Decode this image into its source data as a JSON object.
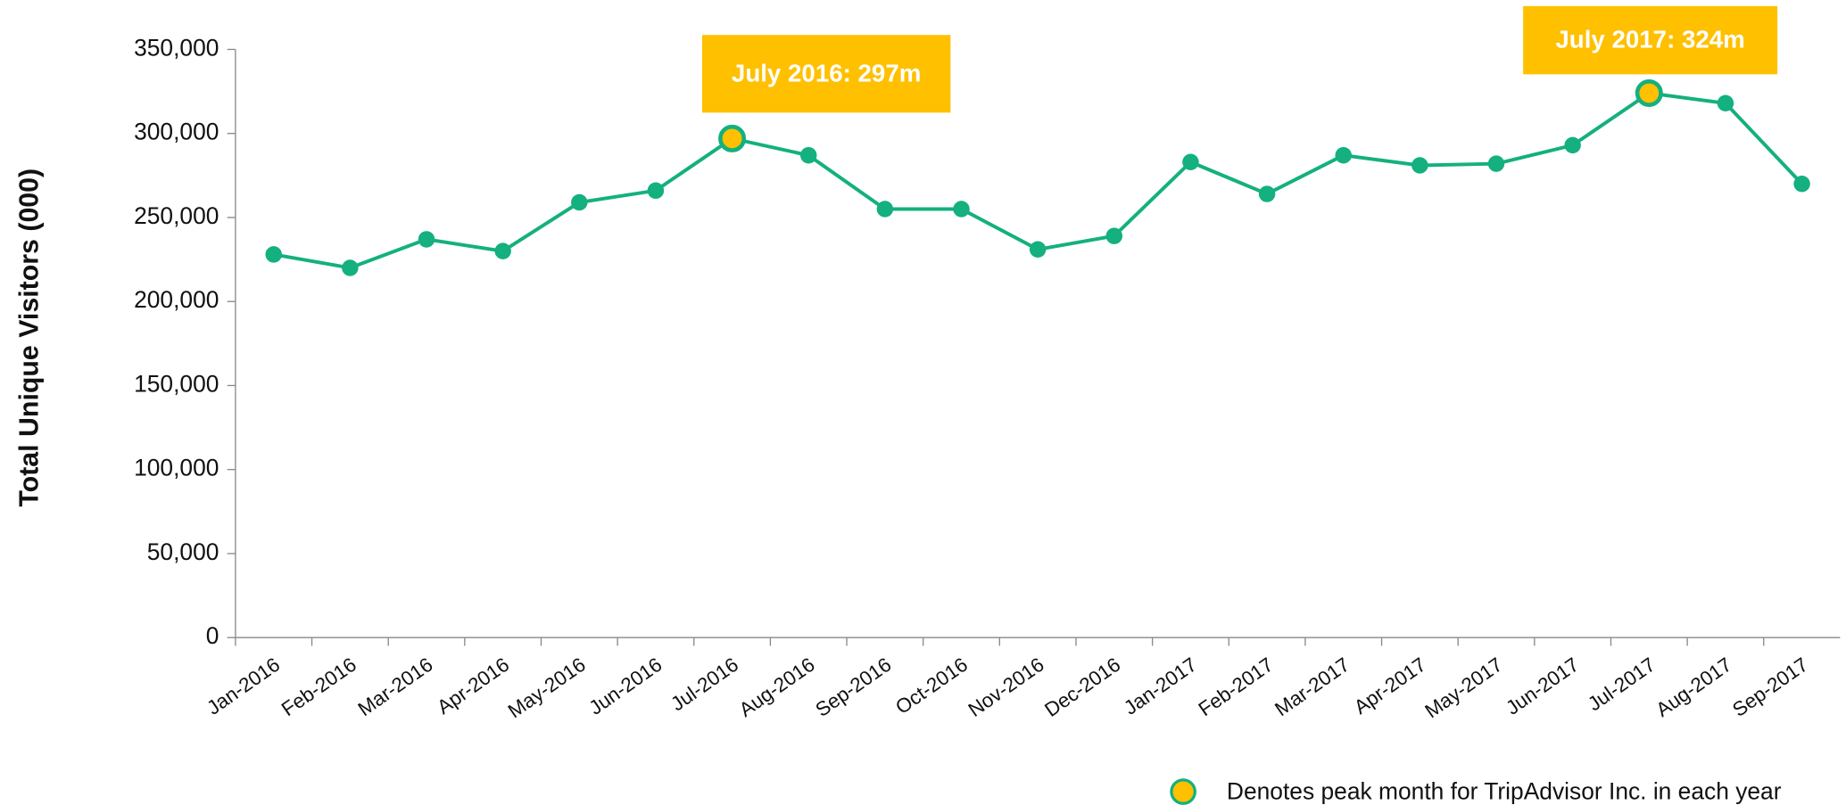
{
  "chart_data": {
    "type": "line",
    "y_label": "Total Unique Visitors (000)",
    "categories": [
      "Jan-2016",
      "Feb-2016",
      "Mar-2016",
      "Apr-2016",
      "May-2016",
      "Jun-2016",
      "Jul-2016",
      "Aug-2016",
      "Sep-2016",
      "Oct-2016",
      "Nov-2016",
      "Dec-2016",
      "Jan-2017",
      "Feb-2017",
      "Mar-2017",
      "Apr-2017",
      "May-2017",
      "Jun-2017",
      "Jul-2017",
      "Aug-2017",
      "Sep-2017"
    ],
    "values": [
      228000,
      220000,
      237000,
      230000,
      259000,
      266000,
      297000,
      287000,
      255000,
      255000,
      231000,
      239000,
      283000,
      264000,
      287000,
      281000,
      282000,
      293000,
      324000,
      318000,
      270000
    ],
    "color": "#14b07f",
    "highlight_color": "#ffc000",
    "ylim": [
      0,
      350000
    ],
    "yticks": [
      0,
      {
        "value": 50000,
        "label": "50,000"
      },
      {
        "value": 100000,
        "label": "100,000"
      },
      {
        "value": 150000,
        "label": "150,000"
      },
      {
        "value": 200000,
        "label": "200,000"
      },
      {
        "value": 250000,
        "label": "250,000"
      },
      {
        "value": 300000,
        "label": "300,000"
      },
      {
        "value": 350000,
        "label": "350,000"
      }
    ],
    "annotations": [
      {
        "text": "July 2016: 297m",
        "category": "Jul-2016"
      },
      {
        "text": "July 2017: 324m",
        "category": "Jul-2017"
      }
    ],
    "note": "Denotes peak month for TripAdvisor Inc. in each year"
  }
}
